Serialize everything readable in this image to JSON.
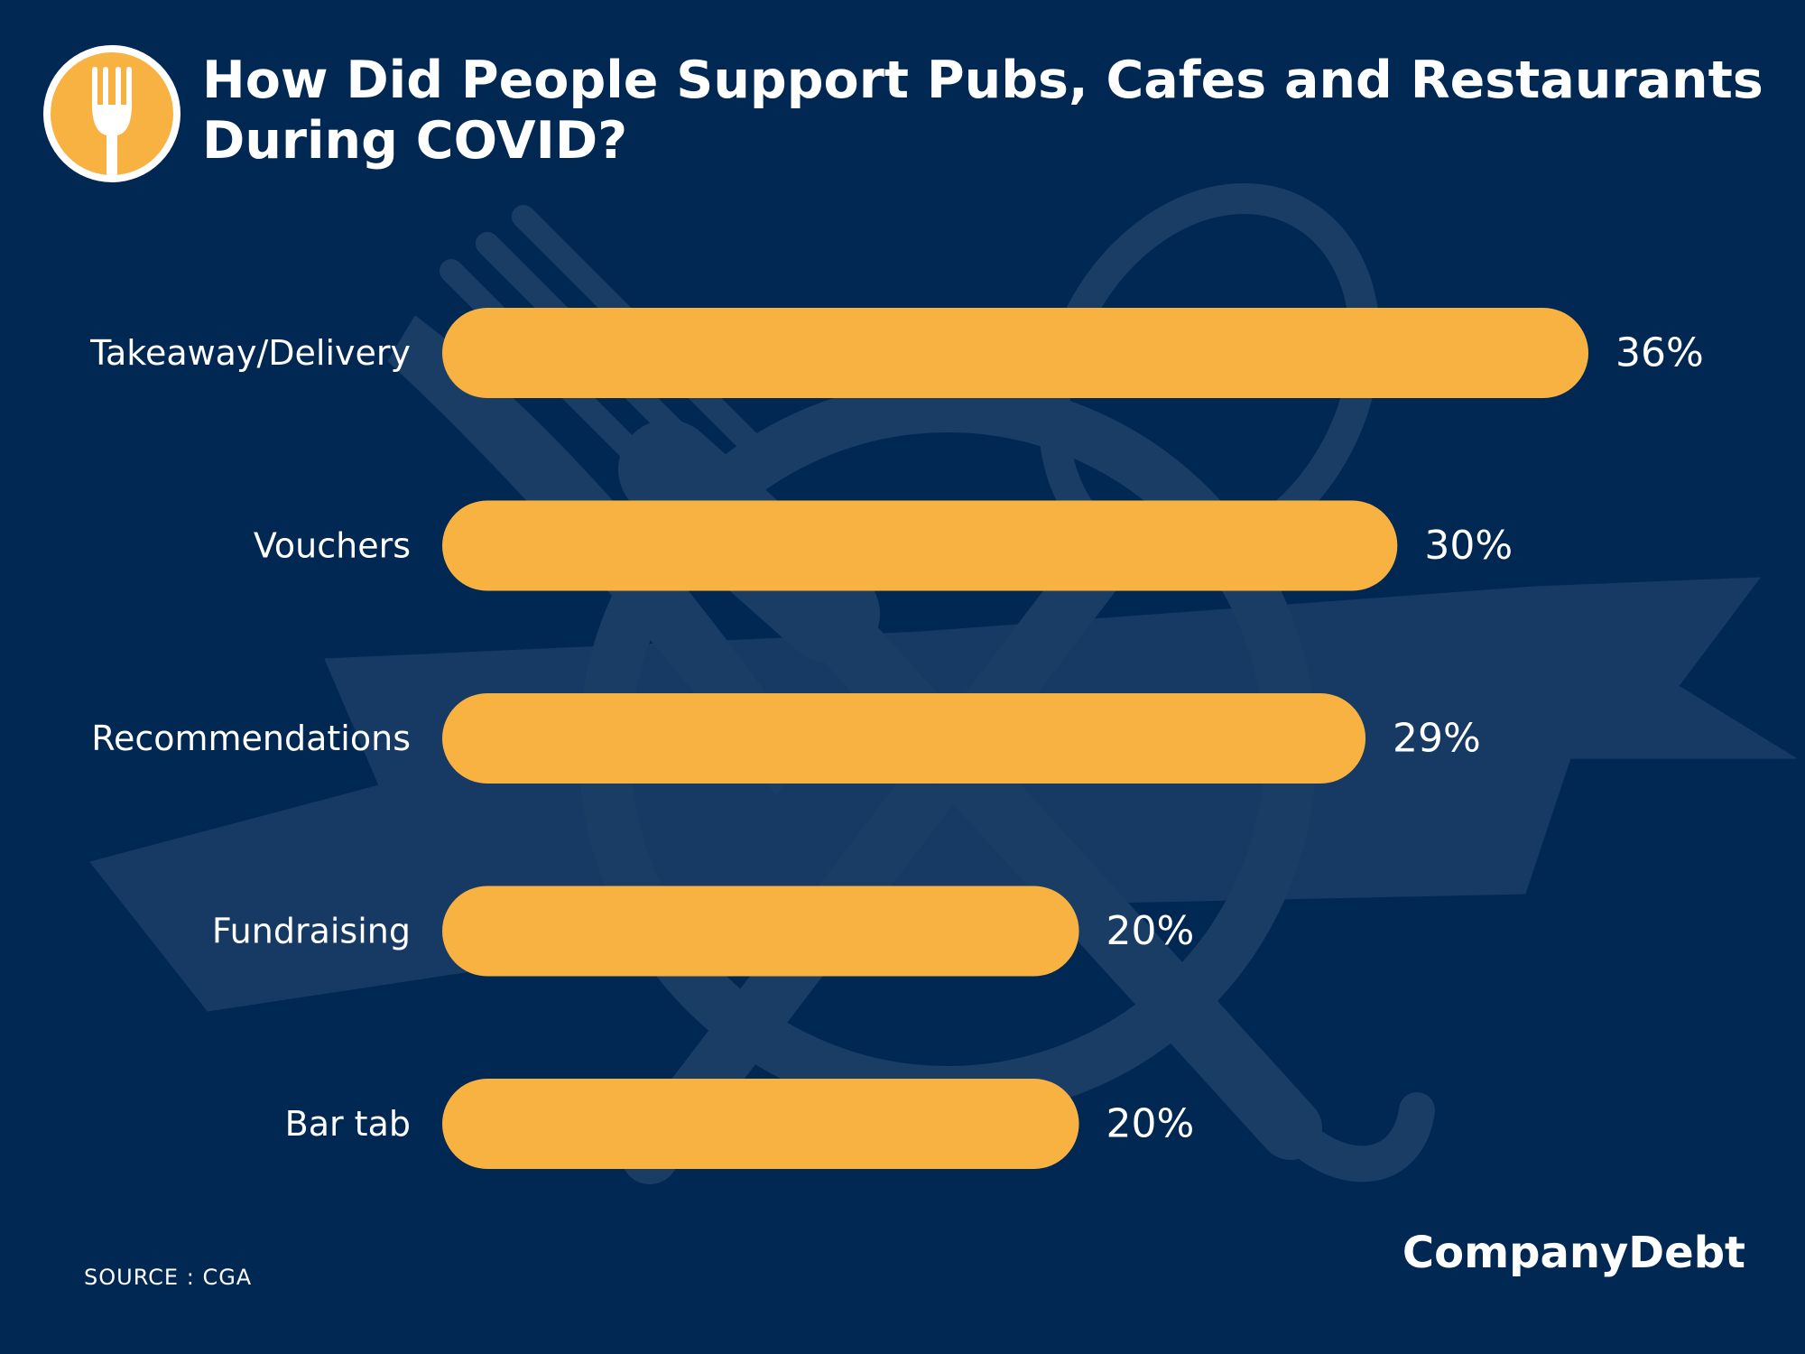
{
  "title": "How Did People Support Pubs, Cafes and Restaurants During COVID?",
  "source": "SOURCE : CGA",
  "brand": "CompanyDebt",
  "icons": {
    "logo": "fork-icon",
    "background": "cutlery-watermark"
  },
  "colors": {
    "background": "#012853",
    "bar": "#F8B242",
    "text": "#FFFFFF",
    "watermark": "#1A3D66",
    "logo_ring": "#FFFFFF",
    "logo_fill": "#F8B242"
  },
  "chart_data": {
    "type": "bar",
    "orientation": "horizontal",
    "title": "How Did People Support Pubs, Cafes and Restaurants During COVID?",
    "categories": [
      "Takeaway/Delivery",
      "Vouchers",
      "Recommendations",
      "Fundraising",
      "Bar tab"
    ],
    "values": [
      36,
      30,
      29,
      20,
      20
    ],
    "value_labels": [
      "36%",
      "30%",
      "29%",
      "20%",
      "20%"
    ],
    "unit": "%",
    "xlim": [
      0,
      36
    ],
    "grid": false,
    "legend": "none"
  }
}
